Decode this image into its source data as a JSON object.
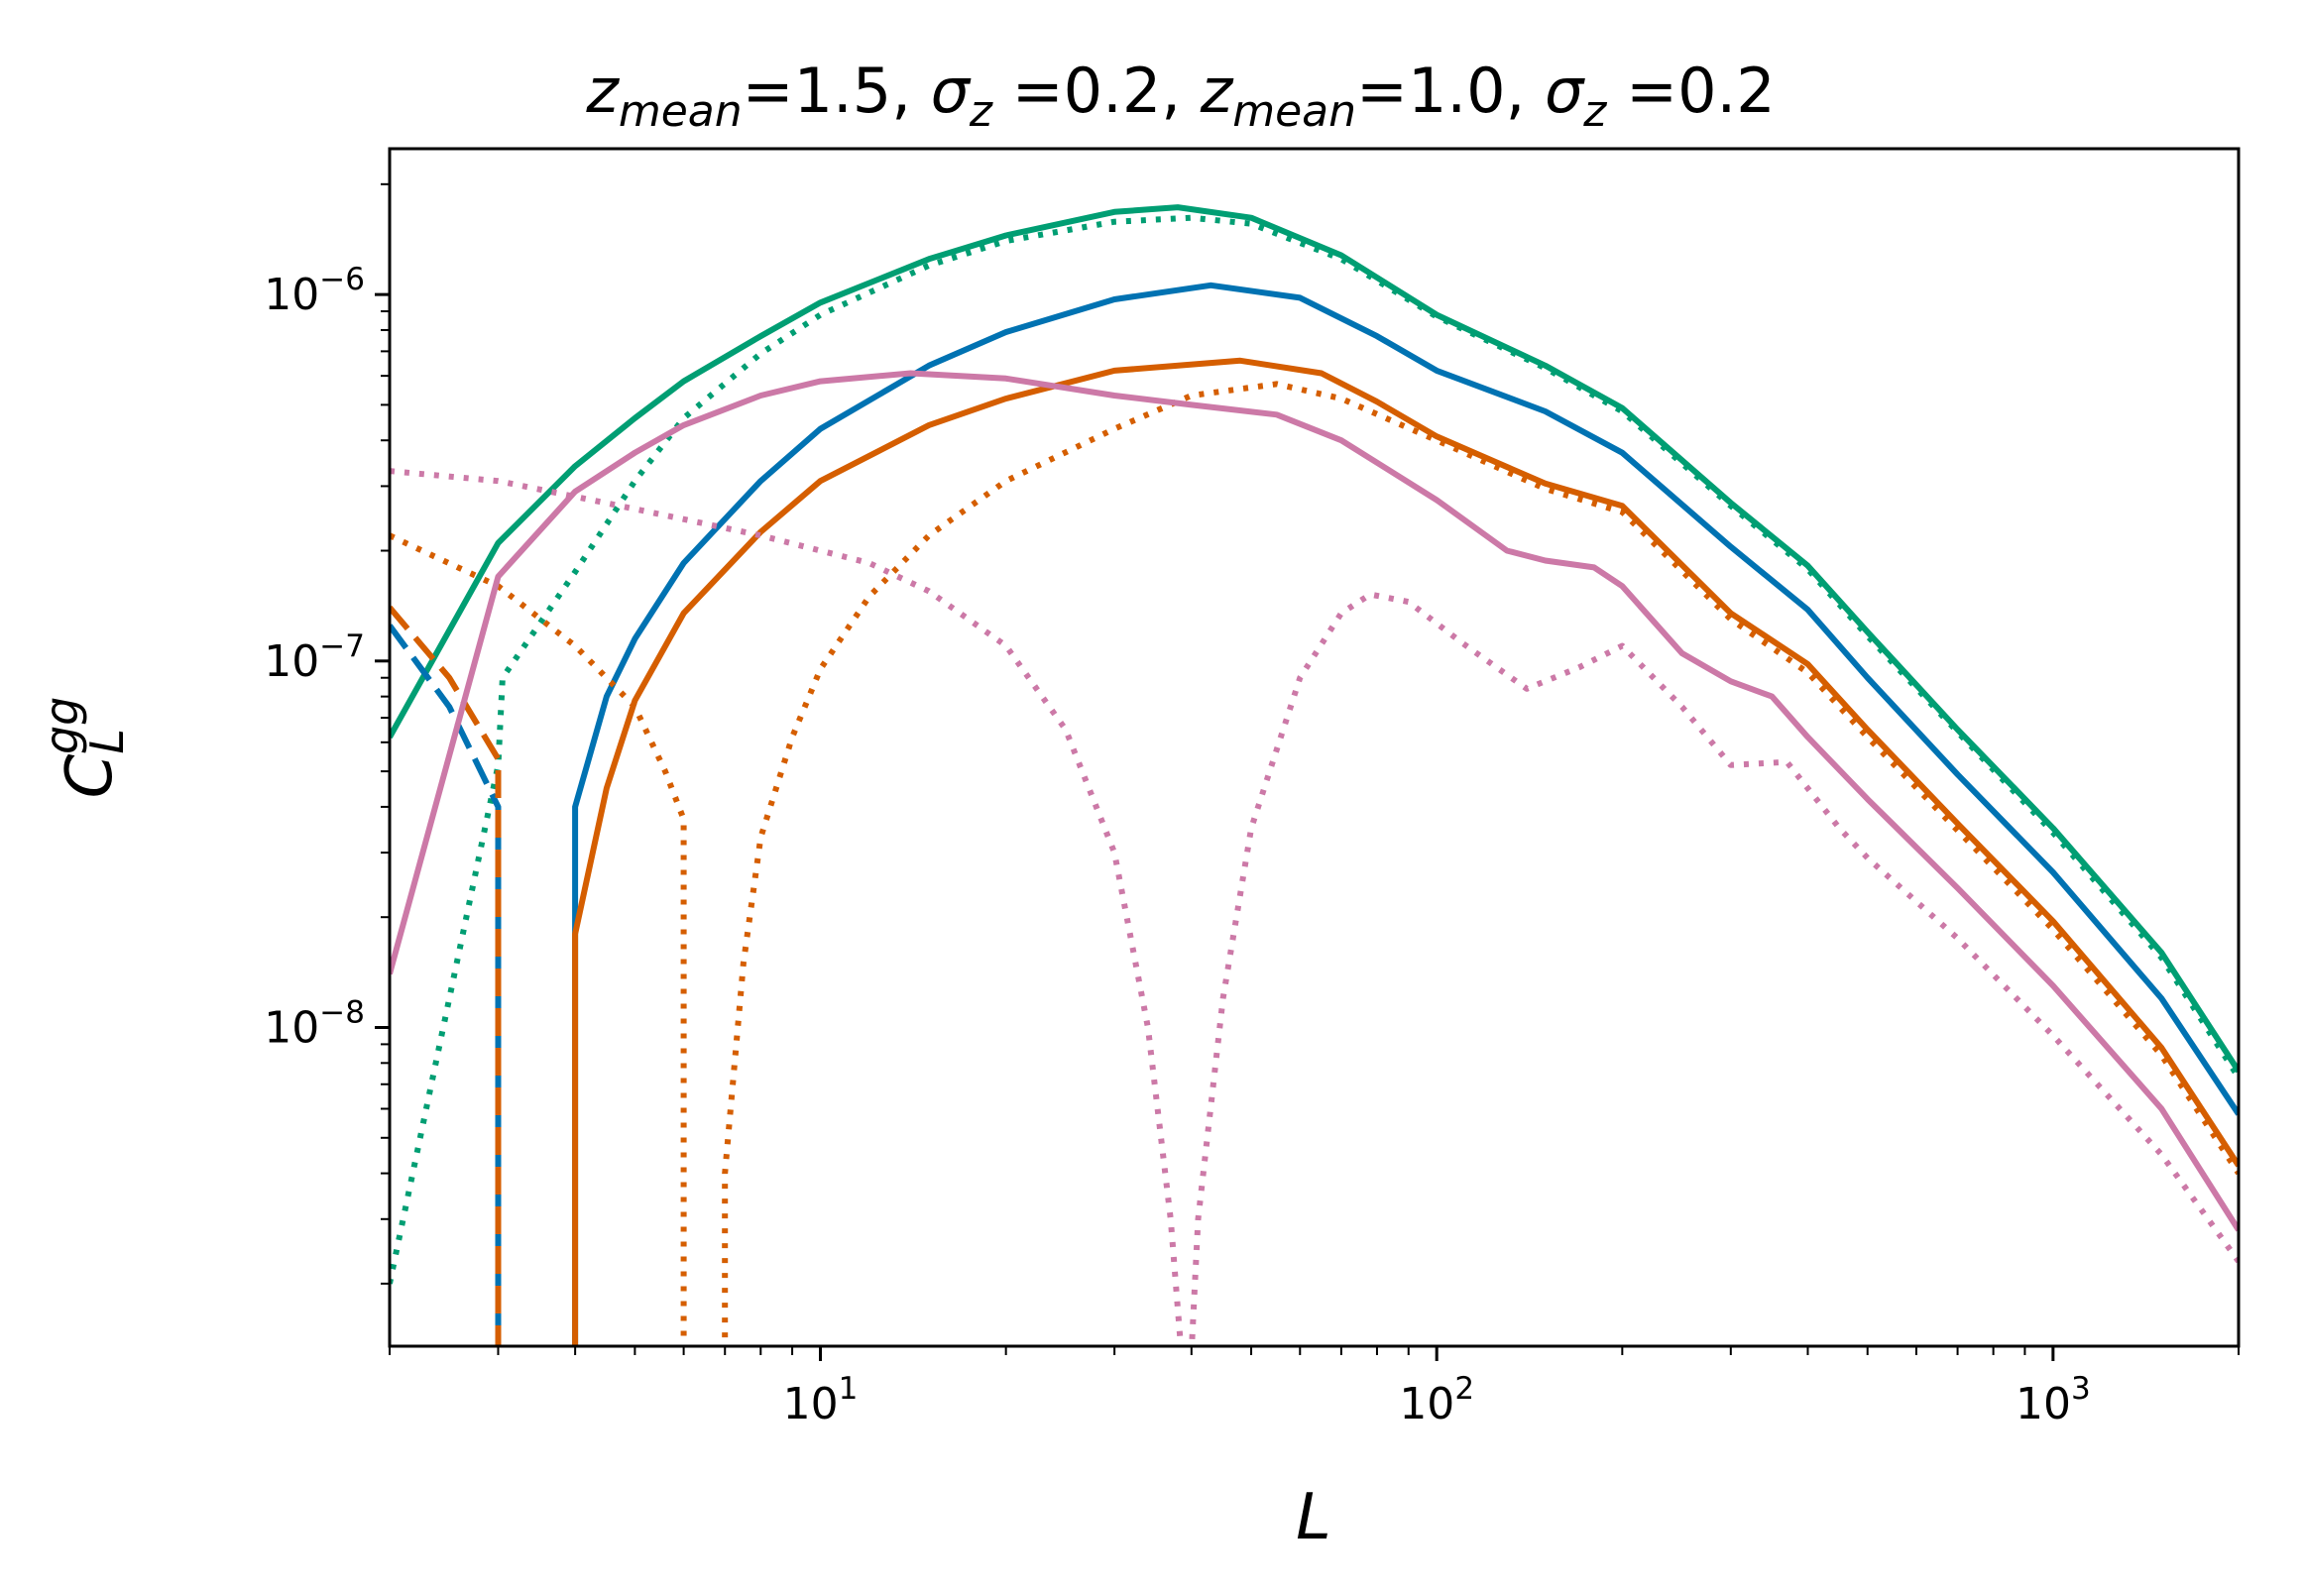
{
  "chart_data": {
    "type": "line",
    "title_parts": {
      "z1": "z",
      "z1_sub": "mean",
      "z1_value": "=1.5, ",
      "s1": "σ",
      "s1_sub": "z",
      "s1_value": " =0.2, ",
      "z2": "z",
      "z2_sub": "mean",
      "z2_value": "=1.0, ",
      "s2": "σ",
      "s2_sub": "z",
      "s2_value": " =0.2"
    },
    "xlabel": "L",
    "ylabel": {
      "main": "C",
      "sub": "L",
      "sup": "gg"
    },
    "xscale": "log",
    "yscale": "log",
    "xlim": [
      2,
      2000
    ],
    "ylim": [
      1.35e-09,
      2.5e-06
    ],
    "x_ticks": [
      {
        "value": 10,
        "base": "10",
        "exp": "1"
      },
      {
        "value": 100,
        "base": "10",
        "exp": "2"
      },
      {
        "value": 1000,
        "base": "10",
        "exp": "3"
      }
    ],
    "y_ticks": [
      {
        "value": 1e-08,
        "base": "10",
        "exp": "−8"
      },
      {
        "value": 1e-07,
        "base": "10",
        "exp": "−7"
      },
      {
        "value": 1e-06,
        "base": "10",
        "exp": "−6"
      }
    ],
    "grid": false,
    "legend": "none",
    "series": [
      {
        "name": "green-solid",
        "color": "#009e73",
        "style": "solid",
        "points": [
          [
            2,
            6.2e-08
          ],
          [
            3,
            2.1e-07
          ],
          [
            4,
            3.4e-07
          ],
          [
            5,
            4.6e-07
          ],
          [
            6,
            5.8e-07
          ],
          [
            8,
            7.7e-07
          ],
          [
            10,
            9.5e-07
          ],
          [
            15,
            1.25e-06
          ],
          [
            20,
            1.45e-06
          ],
          [
            30,
            1.68e-06
          ],
          [
            38,
            1.73e-06
          ],
          [
            50,
            1.62e-06
          ],
          [
            70,
            1.28e-06
          ],
          [
            100,
            8.8e-07
          ],
          [
            150,
            6.4e-07
          ],
          [
            200,
            4.9e-07
          ],
          [
            300,
            2.7e-07
          ],
          [
            400,
            1.82e-07
          ],
          [
            500,
            1.2e-07
          ],
          [
            700,
            6.5e-08
          ],
          [
            1000,
            3.5e-08
          ],
          [
            1500,
            1.6e-08
          ],
          [
            2000,
            7.6e-09
          ]
        ]
      },
      {
        "name": "green-dotted",
        "color": "#009e73",
        "style": "dotted",
        "points": [
          [
            2,
            2e-09
          ],
          [
            3,
            5.2e-08
          ],
          [
            3.05,
            9e-08
          ],
          [
            4,
            1.75e-07
          ],
          [
            5,
            3.1e-07
          ],
          [
            6,
            4.6e-07
          ],
          [
            8,
            6.9e-07
          ],
          [
            10,
            8.8e-07
          ],
          [
            15,
            1.2e-06
          ],
          [
            20,
            1.4e-06
          ],
          [
            30,
            1.58e-06
          ],
          [
            40,
            1.62e-06
          ],
          [
            50,
            1.56e-06
          ],
          [
            70,
            1.25e-06
          ],
          [
            100,
            8.7e-07
          ],
          [
            150,
            6.3e-07
          ],
          [
            200,
            4.8e-07
          ],
          [
            300,
            2.65e-07
          ],
          [
            400,
            1.78e-07
          ],
          [
            500,
            1.17e-07
          ],
          [
            700,
            6.4e-08
          ],
          [
            1000,
            3.4e-08
          ],
          [
            1500,
            1.55e-08
          ],
          [
            2000,
            7.3e-09
          ]
        ]
      },
      {
        "name": "blue-dashed",
        "color": "#0072b2",
        "style": "dashed",
        "points": [
          [
            2,
            1.25e-07
          ],
          [
            2.5,
            7.5e-08
          ],
          [
            3,
            4e-08
          ],
          [
            3,
            1.3e-09
          ]
        ]
      },
      {
        "name": "blue-solid",
        "color": "#0072b2",
        "style": "solid",
        "points": [
          [
            4,
            1.3e-09
          ],
          [
            4,
            4e-08
          ],
          [
            4.5,
            8e-08
          ],
          [
            5,
            1.15e-07
          ],
          [
            6,
            1.85e-07
          ],
          [
            8,
            3.1e-07
          ],
          [
            10,
            4.3e-07
          ],
          [
            15,
            6.4e-07
          ],
          [
            20,
            7.9e-07
          ],
          [
            30,
            9.7e-07
          ],
          [
            43,
            1.06e-06
          ],
          [
            60,
            9.8e-07
          ],
          [
            80,
            7.7e-07
          ],
          [
            100,
            6.2e-07
          ],
          [
            150,
            4.8e-07
          ],
          [
            200,
            3.7e-07
          ],
          [
            300,
            2.05e-07
          ],
          [
            400,
            1.38e-07
          ],
          [
            500,
            9e-08
          ],
          [
            700,
            4.9e-08
          ],
          [
            1000,
            2.65e-08
          ],
          [
            1500,
            1.2e-08
          ],
          [
            2000,
            5.8e-09
          ]
        ]
      },
      {
        "name": "orange-dashed",
        "color": "#d55e00",
        "style": "dashed",
        "points": [
          [
            2,
            1.4e-07
          ],
          [
            2.5,
            9e-08
          ],
          [
            3,
            5.4e-08
          ],
          [
            3,
            1.3e-09
          ]
        ]
      },
      {
        "name": "orange-solid",
        "color": "#d55e00",
        "style": "solid",
        "points": [
          [
            4,
            1.3e-09
          ],
          [
            4,
            1.8e-08
          ],
          [
            4.5,
            4.5e-08
          ],
          [
            5,
            7.8e-08
          ],
          [
            6,
            1.35e-07
          ],
          [
            8,
            2.25e-07
          ],
          [
            10,
            3.1e-07
          ],
          [
            15,
            4.4e-07
          ],
          [
            20,
            5.2e-07
          ],
          [
            30,
            6.2e-07
          ],
          [
            48,
            6.6e-07
          ],
          [
            65,
            6.1e-07
          ],
          [
            80,
            5.1e-07
          ],
          [
            100,
            4.1e-07
          ],
          [
            150,
            3.05e-07
          ],
          [
            200,
            2.65e-07
          ],
          [
            300,
            1.35e-07
          ],
          [
            400,
            9.8e-08
          ],
          [
            500,
            6.5e-08
          ],
          [
            700,
            3.6e-08
          ],
          [
            1000,
            1.95e-08
          ],
          [
            1500,
            8.8e-09
          ],
          [
            2000,
            4.2e-09
          ]
        ]
      },
      {
        "name": "orange-dotted-low-L",
        "color": "#d55e00",
        "style": "dotted",
        "points": [
          [
            2,
            2.2e-07
          ],
          [
            3,
            1.6e-07
          ],
          [
            4,
            1.1e-07
          ],
          [
            5,
            7.5e-08
          ],
          [
            5.6,
            5e-08
          ],
          [
            6,
            3.7e-08
          ],
          [
            6,
            1.3e-09
          ]
        ]
      },
      {
        "name": "orange-dotted",
        "color": "#d55e00",
        "style": "dotted",
        "points": [
          [
            7,
            1.3e-09
          ],
          [
            7,
            4e-09
          ],
          [
            7.5,
            1.5e-08
          ],
          [
            8,
            3.3e-08
          ],
          [
            9,
            6.2e-08
          ],
          [
            10,
            9.5e-08
          ],
          [
            12,
            1.5e-07
          ],
          [
            15,
            2.2e-07
          ],
          [
            20,
            3.1e-07
          ],
          [
            30,
            4.3e-07
          ],
          [
            40,
            5.3e-07
          ],
          [
            55,
            5.7e-07
          ],
          [
            70,
            5.2e-07
          ],
          [
            100,
            4e-07
          ],
          [
            150,
            2.95e-07
          ],
          [
            200,
            2.55e-07
          ],
          [
            300,
            1.3e-07
          ],
          [
            400,
            9.3e-08
          ],
          [
            500,
            6.2e-08
          ],
          [
            700,
            3.45e-08
          ],
          [
            1000,
            1.85e-08
          ],
          [
            1500,
            8.4e-09
          ],
          [
            2000,
            4e-09
          ]
        ]
      },
      {
        "name": "pink-solid",
        "color": "#cc79a7",
        "style": "solid",
        "points": [
          [
            2,
            1.4e-08
          ],
          [
            3,
            1.7e-07
          ],
          [
            4,
            2.9e-07
          ],
          [
            5,
            3.7e-07
          ],
          [
            6,
            4.4e-07
          ],
          [
            8,
            5.3e-07
          ],
          [
            10,
            5.8e-07
          ],
          [
            14,
            6.1e-07
          ],
          [
            20,
            5.9e-07
          ],
          [
            30,
            5.3e-07
          ],
          [
            40,
            5e-07
          ],
          [
            55,
            4.7e-07
          ],
          [
            70,
            4e-07
          ],
          [
            100,
            2.75e-07
          ],
          [
            130,
            2e-07
          ],
          [
            150,
            1.88e-07
          ],
          [
            180,
            1.8e-07
          ],
          [
            200,
            1.6e-07
          ],
          [
            250,
            1.05e-07
          ],
          [
            300,
            8.8e-08
          ],
          [
            350,
            8e-08
          ],
          [
            400,
            6.2e-08
          ],
          [
            500,
            4.2e-08
          ],
          [
            700,
            2.4e-08
          ],
          [
            1000,
            1.3e-08
          ],
          [
            1500,
            6e-09
          ],
          [
            2000,
            2.8e-09
          ]
        ]
      },
      {
        "name": "pink-dotted",
        "color": "#cc79a7",
        "style": "dotted",
        "points": [
          [
            2,
            3.3e-07
          ],
          [
            3,
            3.1e-07
          ],
          [
            5,
            2.6e-07
          ],
          [
            8,
            2.2e-07
          ],
          [
            12,
            1.85e-07
          ],
          [
            15,
            1.55e-07
          ],
          [
            20,
            1.1e-07
          ],
          [
            25,
            6.5e-08
          ],
          [
            30,
            3e-08
          ],
          [
            34,
            1e-08
          ],
          [
            37,
            3e-09
          ],
          [
            38.5,
            1.3e-09
          ],
          [
            40,
            1.3e-09
          ],
          [
            41,
            3e-09
          ],
          [
            45,
            1.2e-08
          ],
          [
            50,
            3.5e-08
          ],
          [
            60,
            9e-08
          ],
          [
            70,
            1.35e-07
          ],
          [
            78,
            1.52e-07
          ],
          [
            90,
            1.45e-07
          ],
          [
            110,
            1.12e-07
          ],
          [
            140,
            8.4e-08
          ],
          [
            170,
            9.6e-08
          ],
          [
            200,
            1.1e-07
          ],
          [
            250,
            7.5e-08
          ],
          [
            300,
            5.2e-08
          ],
          [
            370,
            5.3e-08
          ],
          [
            450,
            3.5e-08
          ],
          [
            500,
            2.9e-08
          ],
          [
            700,
            1.75e-08
          ],
          [
            1000,
            9.5e-09
          ],
          [
            1500,
            4.5e-09
          ],
          [
            2000,
            2.3e-09
          ]
        ]
      }
    ]
  }
}
